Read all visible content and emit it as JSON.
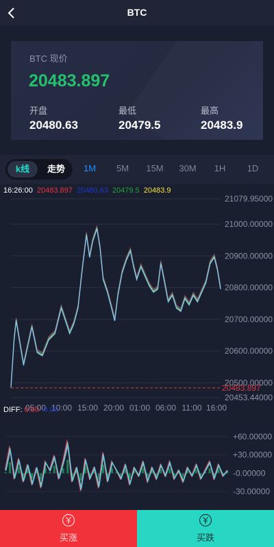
{
  "header": {
    "title": "BTC"
  },
  "card": {
    "label": "BTC 现价",
    "price": "20483.897",
    "stats": [
      {
        "label": "开盘",
        "value": "20480.63"
      },
      {
        "label": "最低",
        "value": "20479.5"
      },
      {
        "label": "最高",
        "value": "20483.9"
      }
    ]
  },
  "tabs": {
    "kline": "k线",
    "trend": "走势",
    "intervals": [
      "1M",
      "5M",
      "15M",
      "30M",
      "1H",
      "1D"
    ],
    "active_interval": "1M"
  },
  "legend": {
    "time": "16:26:00",
    "v1": "20483.897",
    "v2": "20480.63",
    "v3": "20479.5",
    "v4": "20483.9"
  },
  "diff_legend": {
    "label": "DIFF:",
    "v1": "0.50",
    "v2": "-0.00"
  },
  "buttons": {
    "buy": "买涨",
    "sell": "买跌"
  },
  "colors": {
    "up": "#25c06d",
    "buy": "#f2323b",
    "sell": "#27d6c3",
    "active_tab": "#1e90ff"
  },
  "chart_data": [
    {
      "type": "line",
      "x_ticks": [
        "05:00",
        "10:00",
        "15:00",
        "20:00",
        "01:00",
        "06:00",
        "11:00",
        "16:00"
      ],
      "y_ticks": [
        "21079.95000",
        "21000.00000",
        "20900.00000",
        "20800.00000",
        "20700.00000",
        "20600.00000",
        "20500.00000",
        "20453.44000"
      ],
      "ylim": [
        20453.44,
        21079.95
      ],
      "current_price_label": "20483.897",
      "current_price": 20483.897,
      "series_points": [
        [
          0,
          20490
        ],
        [
          3,
          20640
        ],
        [
          5,
          20700
        ],
        [
          8,
          20640
        ],
        [
          12,
          20560
        ],
        [
          16,
          20620
        ],
        [
          20,
          20680
        ],
        [
          25,
          20600
        ],
        [
          30,
          20590
        ],
        [
          36,
          20640
        ],
        [
          42,
          20660
        ],
        [
          48,
          20740
        ],
        [
          52,
          20700
        ],
        [
          56,
          20660
        ],
        [
          60,
          20690
        ],
        [
          64,
          20740
        ],
        [
          68,
          20860
        ],
        [
          72,
          20970
        ],
        [
          75,
          20900
        ],
        [
          78,
          20950
        ],
        [
          82,
          20990
        ],
        [
          85,
          20930
        ],
        [
          88,
          20830
        ],
        [
          92,
          20790
        ],
        [
          96,
          20740
        ],
        [
          99,
          20700
        ],
        [
          102,
          20780
        ],
        [
          106,
          20850
        ],
        [
          110,
          20890
        ],
        [
          114,
          20920
        ],
        [
          117,
          20870
        ],
        [
          120,
          20830
        ],
        [
          124,
          20870
        ],
        [
          128,
          20840
        ],
        [
          132,
          20810
        ],
        [
          136,
          20790
        ],
        [
          140,
          20800
        ],
        [
          143,
          20880
        ],
        [
          146,
          20830
        ],
        [
          150,
          20760
        ],
        [
          154,
          20780
        ],
        [
          158,
          20740
        ],
        [
          162,
          20730
        ],
        [
          166,
          20770
        ],
        [
          170,
          20750
        ],
        [
          174,
          20780
        ],
        [
          178,
          20760
        ],
        [
          182,
          20790
        ],
        [
          186,
          20820
        ],
        [
          190,
          20880
        ],
        [
          194,
          20900
        ],
        [
          197,
          20860
        ],
        [
          200,
          20800
        ]
      ]
    },
    {
      "type": "line",
      "title": "DIFF",
      "y_ticks": [
        "+60.00000",
        "+30.00000",
        "-0.00000",
        "-30.00000"
      ],
      "ylim": [
        -40,
        70
      ],
      "series_points": [
        [
          0,
          5
        ],
        [
          4,
          45
        ],
        [
          8,
          -10
        ],
        [
          12,
          25
        ],
        [
          16,
          -15
        ],
        [
          20,
          15
        ],
        [
          24,
          -20
        ],
        [
          28,
          10
        ],
        [
          32,
          -25
        ],
        [
          36,
          20
        ],
        [
          40,
          5
        ],
        [
          44,
          30
        ],
        [
          48,
          -10
        ],
        [
          52,
          20
        ],
        [
          56,
          55
        ],
        [
          60,
          -15
        ],
        [
          64,
          10
        ],
        [
          68,
          -30
        ],
        [
          72,
          25
        ],
        [
          76,
          -10
        ],
        [
          80,
          10
        ],
        [
          84,
          -25
        ],
        [
          88,
          35
        ],
        [
          92,
          -15
        ],
        [
          96,
          20
        ],
        [
          100,
          5
        ],
        [
          104,
          -10
        ],
        [
          108,
          15
        ],
        [
          112,
          -20
        ],
        [
          116,
          10
        ],
        [
          120,
          -5
        ],
        [
          124,
          20
        ],
        [
          128,
          -15
        ],
        [
          132,
          10
        ],
        [
          136,
          -10
        ],
        [
          140,
          15
        ],
        [
          144,
          -5
        ],
        [
          148,
          20
        ],
        [
          152,
          -10
        ],
        [
          156,
          5
        ],
        [
          160,
          -15
        ],
        [
          164,
          10
        ],
        [
          168,
          -5
        ],
        [
          172,
          15
        ],
        [
          176,
          -10
        ],
        [
          180,
          5
        ],
        [
          184,
          20
        ],
        [
          188,
          -10
        ],
        [
          192,
          15
        ],
        [
          196,
          -5
        ],
        [
          200,
          5
        ]
      ]
    }
  ]
}
